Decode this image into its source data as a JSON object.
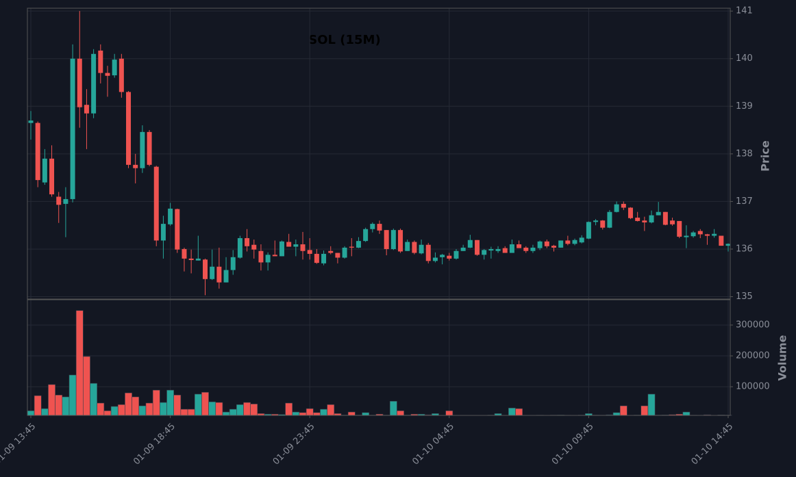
{
  "chart_data": {
    "type": "candlestick",
    "title": "SOL (15M)",
    "categories": [
      "01-09 13:45",
      null,
      null,
      null,
      null,
      null,
      null,
      null,
      null,
      null,
      null,
      null,
      null,
      null,
      null,
      null,
      null,
      null,
      null,
      null,
      "01-09 18:45",
      null,
      null,
      null,
      null,
      null,
      null,
      null,
      null,
      null,
      null,
      null,
      null,
      null,
      null,
      null,
      null,
      null,
      null,
      null,
      "01-09 23:45",
      null,
      null,
      null,
      null,
      null,
      null,
      null,
      null,
      null,
      null,
      null,
      null,
      null,
      null,
      null,
      null,
      null,
      null,
      null,
      "01-10 04:45",
      null,
      null,
      null,
      null,
      null,
      null,
      null,
      null,
      null,
      null,
      null,
      null,
      null,
      null,
      null,
      null,
      null,
      null,
      null,
      "01-10 09:45",
      null,
      null,
      null,
      null,
      null,
      null,
      null,
      null,
      null,
      null,
      null,
      null,
      null,
      null,
      null,
      null,
      null,
      null,
      null,
      "01-10 14:45"
    ],
    "open": [
      138.65,
      138.65,
      137.4,
      137.9,
      137.1,
      136.95,
      137.05,
      140.0,
      139.03,
      138.85,
      140.17,
      139.7,
      139.65,
      140.0,
      139.3,
      137.77,
      137.7,
      138.46,
      137.73,
      136.18,
      136.52,
      136.84,
      136.0,
      135.8,
      135.76,
      135.78,
      135.37,
      135.63,
      135.3,
      135.56,
      135.82,
      136.23,
      136.09,
      135.96,
      135.72,
      135.88,
      135.85,
      136.15,
      136.05,
      136.1,
      135.98,
      135.9,
      135.7,
      135.96,
      135.92,
      135.82,
      136.05,
      136.03,
      136.17,
      136.42,
      136.53,
      136.4,
      136.0,
      136.4,
      135.96,
      136.15,
      135.91,
      136.09,
      135.75,
      135.83,
      135.86,
      135.8,
      135.96,
      136.03,
      136.19,
      135.88,
      135.97,
      135.96,
      136.02,
      135.92,
      136.1,
      136.03,
      135.96,
      136.02,
      136.16,
      136.07,
      136.03,
      136.18,
      136.11,
      136.14,
      136.22,
      136.57,
      136.6,
      136.45,
      136.78,
      136.95,
      136.87,
      136.66,
      136.6,
      136.56,
      136.71,
      136.78,
      136.6,
      136.59,
      136.25,
      136.27,
      136.38,
      136.31,
      136.28,
      136.28,
      136.07
    ],
    "high": [
      138.9,
      138.68,
      138.1,
      138.18,
      137.2,
      137.3,
      140.3,
      141.0,
      139.36,
      140.2,
      140.3,
      139.85,
      140.1,
      140.1,
      139.32,
      138.0,
      138.6,
      138.5,
      137.75,
      136.7,
      136.97,
      136.85,
      136.03,
      135.99,
      136.28,
      135.8,
      135.99,
      136.03,
      135.83,
      135.98,
      136.28,
      136.42,
      136.2,
      136.1,
      135.93,
      136.18,
      136.18,
      136.32,
      136.2,
      136.36,
      136.23,
      136.0,
      135.97,
      136.06,
      135.92,
      136.06,
      136.23,
      136.25,
      136.45,
      136.56,
      136.6,
      136.4,
      136.43,
      136.43,
      136.2,
      136.18,
      136.2,
      136.13,
      135.93,
      135.9,
      135.92,
      136.0,
      136.09,
      136.3,
      136.19,
      136.0,
      136.05,
      136.06,
      136.06,
      136.2,
      136.18,
      136.06,
      136.09,
      136.18,
      136.2,
      136.09,
      136.18,
      136.28,
      136.22,
      136.29,
      136.58,
      136.63,
      136.61,
      136.82,
      137.0,
      137.0,
      136.88,
      136.78,
      136.68,
      136.81,
      136.99,
      136.78,
      136.66,
      136.59,
      136.5,
      136.38,
      136.42,
      136.32,
      136.42,
      136.28,
      136.12
    ],
    "low": [
      138.3,
      137.3,
      137.35,
      137.1,
      136.55,
      136.25,
      136.98,
      138.55,
      138.1,
      138.75,
      139.48,
      139.2,
      139.6,
      139.18,
      137.7,
      137.38,
      137.6,
      137.74,
      136.06,
      135.8,
      136.49,
      135.92,
      135.53,
      135.49,
      135.76,
      135.03,
      135.35,
      135.17,
      135.3,
      135.46,
      135.8,
      135.95,
      135.8,
      135.55,
      135.55,
      135.85,
      135.85,
      136.05,
      135.85,
      135.78,
      135.78,
      135.69,
      135.66,
      135.89,
      135.7,
      135.8,
      135.85,
      136.02,
      136.15,
      136.35,
      136.32,
      135.87,
      135.98,
      135.92,
      135.96,
      135.89,
      135.89,
      135.7,
      135.72,
      135.68,
      135.76,
      135.78,
      135.96,
      136.02,
      135.86,
      135.78,
      135.8,
      135.92,
      135.92,
      135.92,
      136.02,
      135.92,
      135.92,
      135.98,
      136.02,
      135.95,
      136.03,
      136.08,
      136.08,
      136.12,
      136.21,
      136.5,
      136.41,
      136.44,
      136.77,
      136.82,
      136.63,
      136.58,
      136.38,
      136.54,
      136.71,
      136.5,
      136.49,
      136.23,
      136.02,
      136.24,
      136.23,
      136.09,
      136.24,
      136.07,
      135.95
    ],
    "close": [
      138.7,
      137.45,
      137.9,
      137.15,
      136.93,
      137.05,
      140.0,
      138.98,
      138.85,
      140.1,
      139.7,
      139.64,
      139.98,
      139.3,
      137.77,
      137.7,
      138.46,
      137.77,
      136.18,
      136.53,
      136.85,
      135.99,
      135.8,
      135.77,
      135.8,
      135.37,
      135.63,
      135.3,
      135.56,
      135.83,
      136.23,
      136.06,
      135.99,
      135.72,
      135.88,
      135.85,
      136.16,
      136.05,
      136.1,
      135.96,
      135.9,
      135.71,
      135.9,
      135.92,
      135.82,
      136.03,
      136.03,
      136.17,
      136.42,
      136.53,
      136.39,
      136.0,
      136.4,
      135.95,
      136.15,
      135.92,
      136.09,
      135.75,
      135.82,
      135.88,
      135.8,
      135.96,
      136.03,
      136.19,
      135.88,
      135.98,
      136.0,
      136.0,
      135.92,
      136.1,
      136.02,
      135.96,
      136.03,
      136.16,
      136.06,
      136.03,
      136.18,
      136.11,
      136.19,
      136.24,
      136.57,
      136.6,
      136.45,
      136.78,
      136.94,
      136.87,
      136.65,
      136.59,
      136.56,
      136.71,
      136.78,
      136.51,
      136.52,
      136.26,
      136.28,
      136.35,
      136.31,
      136.28,
      136.32,
      136.07,
      136.11
    ],
    "up_color": "#26a69a",
    "down_color": "#ef5350",
    "ylabel": "Price",
    "ylim": [
      134.95,
      141.06
    ],
    "yticks": [
      135,
      136,
      137,
      138,
      139,
      140,
      141
    ],
    "grid": true,
    "volume": {
      "label": "Volume",
      "ylim": [
        7000,
        382000
      ],
      "yticks": [
        100000,
        200000,
        300000
      ],
      "values": [
        22000,
        71000,
        29000,
        107000,
        73000,
        67000,
        138000,
        347000,
        198000,
        111000,
        47000,
        22000,
        36000,
        42000,
        80000,
        67000,
        38000,
        47000,
        89000,
        49000,
        89000,
        73000,
        27000,
        27000,
        76000,
        82000,
        51000,
        49000,
        18000,
        27000,
        42000,
        49000,
        44000,
        13000,
        11000,
        11000,
        10000,
        47000,
        18000,
        16000,
        29000,
        16000,
        27000,
        42000,
        13000,
        8000,
        18000,
        8000,
        16000,
        8000,
        11000,
        8000,
        53000,
        22000,
        8000,
        11000,
        11000,
        9000,
        13000,
        7500,
        22000,
        7200,
        7100,
        7100,
        7200,
        7300,
        8000,
        13000,
        7500,
        31000,
        29000,
        7400,
        7300,
        7800,
        7500,
        7900,
        8200,
        7600,
        7300,
        7900,
        13000,
        8000,
        7800,
        9000,
        16000,
        38000,
        7500,
        8000,
        38000,
        76000,
        8000,
        8500,
        9500,
        11000,
        18000,
        7800,
        7600,
        9000,
        7500,
        8500,
        8000
      ]
    }
  }
}
